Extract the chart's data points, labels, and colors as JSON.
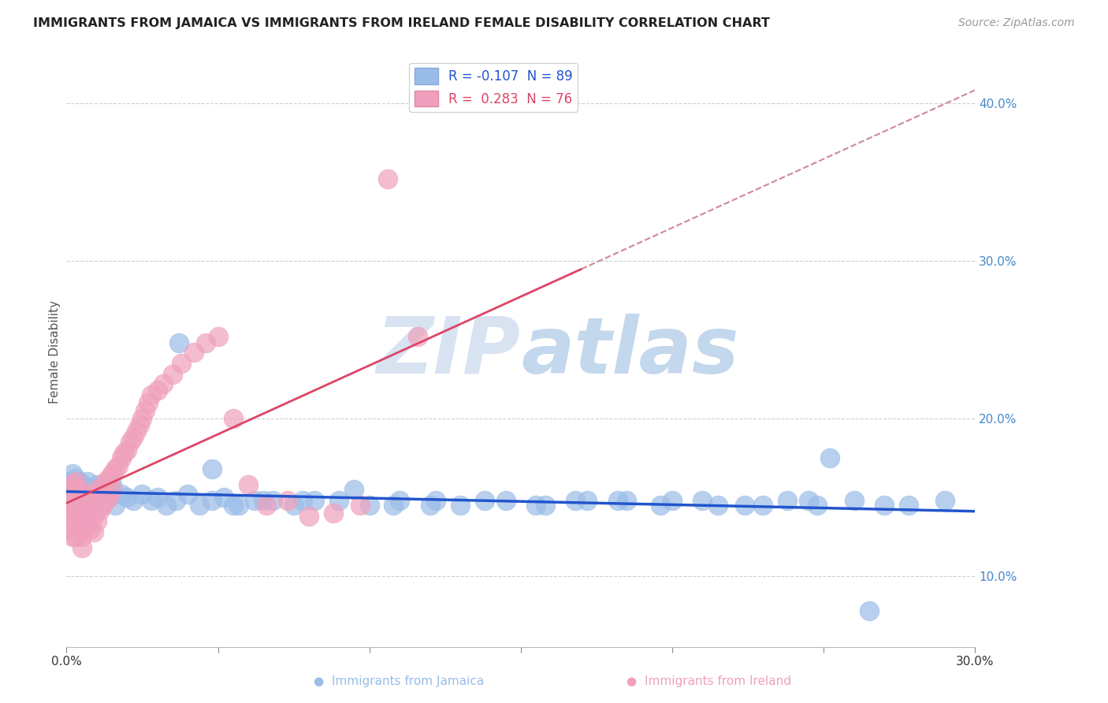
{
  "title": "IMMIGRANTS FROM JAMAICA VS IMMIGRANTS FROM IRELAND FEMALE DISABILITY CORRELATION CHART",
  "source": "Source: ZipAtlas.com",
  "ylabel": "Female Disability",
  "xlim": [
    0.0,
    0.3
  ],
  "ylim": [
    0.055,
    0.43
  ],
  "yticks": [
    0.1,
    0.2,
    0.3,
    0.4
  ],
  "xtick_positions": [
    0.0,
    0.05,
    0.1,
    0.15,
    0.2,
    0.25,
    0.3
  ],
  "xtick_labels": [
    "0.0%",
    "",
    "",
    "",
    "",
    "",
    "30.0%"
  ],
  "jamaica_color": "#9abde8",
  "ireland_color": "#f0a0bc",
  "jamaica_R": -0.107,
  "jamaica_N": 89,
  "ireland_R": 0.283,
  "ireland_N": 76,
  "trend_blue_color": "#2255cc",
  "trend_pink_color": "#dd4466",
  "trend_pink_dash_color": "#cc8899",
  "watermark_color": "#c8d8f0",
  "background_color": "#ffffff",
  "grid_color": "#c8d0de",
  "ytick_color": "#4488cc",
  "jamaica_x": [
    0.001,
    0.001,
    0.001,
    0.002,
    0.002,
    0.002,
    0.002,
    0.003,
    0.003,
    0.003,
    0.003,
    0.004,
    0.004,
    0.004,
    0.004,
    0.005,
    0.005,
    0.005,
    0.006,
    0.006,
    0.006,
    0.007,
    0.007,
    0.007,
    0.008,
    0.008,
    0.009,
    0.009,
    0.01,
    0.01,
    0.011,
    0.012,
    0.013,
    0.014,
    0.015,
    0.016,
    0.018,
    0.02,
    0.022,
    0.025,
    0.028,
    0.03,
    0.033,
    0.036,
    0.04,
    0.044,
    0.048,
    0.052,
    0.057,
    0.062,
    0.068,
    0.075,
    0.082,
    0.09,
    0.1,
    0.11,
    0.12,
    0.13,
    0.145,
    0.158,
    0.172,
    0.185,
    0.2,
    0.215,
    0.23,
    0.245,
    0.26,
    0.27,
    0.037,
    0.048,
    0.055,
    0.065,
    0.078,
    0.095,
    0.108,
    0.122,
    0.138,
    0.155,
    0.168,
    0.182,
    0.196,
    0.21,
    0.224,
    0.238,
    0.252,
    0.265,
    0.278,
    0.29,
    0.248
  ],
  "jamaica_y": [
    0.155,
    0.16,
    0.148,
    0.152,
    0.158,
    0.143,
    0.165,
    0.15,
    0.157,
    0.145,
    0.162,
    0.148,
    0.155,
    0.143,
    0.16,
    0.152,
    0.147,
    0.158,
    0.15,
    0.155,
    0.145,
    0.148,
    0.16,
    0.153,
    0.152,
    0.145,
    0.155,
    0.148,
    0.15,
    0.158,
    0.145,
    0.155,
    0.148,
    0.152,
    0.158,
    0.145,
    0.152,
    0.15,
    0.148,
    0.152,
    0.148,
    0.15,
    0.145,
    0.148,
    0.152,
    0.145,
    0.148,
    0.15,
    0.145,
    0.148,
    0.148,
    0.145,
    0.148,
    0.148,
    0.145,
    0.148,
    0.145,
    0.145,
    0.148,
    0.145,
    0.148,
    0.148,
    0.148,
    0.145,
    0.145,
    0.148,
    0.148,
    0.145,
    0.248,
    0.168,
    0.145,
    0.148,
    0.148,
    0.155,
    0.145,
    0.148,
    0.148,
    0.145,
    0.148,
    0.148,
    0.145,
    0.148,
    0.145,
    0.148,
    0.175,
    0.078,
    0.145,
    0.148,
    0.145
  ],
  "ireland_x": [
    0.001,
    0.001,
    0.001,
    0.001,
    0.002,
    0.002,
    0.002,
    0.002,
    0.003,
    0.003,
    0.003,
    0.003,
    0.003,
    0.004,
    0.004,
    0.004,
    0.004,
    0.005,
    0.005,
    0.005,
    0.005,
    0.005,
    0.006,
    0.006,
    0.006,
    0.007,
    0.007,
    0.007,
    0.008,
    0.008,
    0.008,
    0.009,
    0.009,
    0.009,
    0.01,
    0.01,
    0.01,
    0.011,
    0.011,
    0.012,
    0.012,
    0.013,
    0.013,
    0.014,
    0.014,
    0.015,
    0.015,
    0.016,
    0.017,
    0.018,
    0.019,
    0.02,
    0.021,
    0.022,
    0.023,
    0.024,
    0.025,
    0.026,
    0.027,
    0.028,
    0.03,
    0.032,
    0.035,
    0.038,
    0.042,
    0.046,
    0.05,
    0.055,
    0.06,
    0.066,
    0.073,
    0.08,
    0.088,
    0.097,
    0.106,
    0.116
  ],
  "ireland_y": [
    0.155,
    0.148,
    0.14,
    0.13,
    0.158,
    0.145,
    0.135,
    0.125,
    0.16,
    0.152,
    0.143,
    0.135,
    0.125,
    0.155,
    0.148,
    0.138,
    0.128,
    0.152,
    0.143,
    0.135,
    0.125,
    0.118,
    0.148,
    0.14,
    0.13,
    0.152,
    0.143,
    0.133,
    0.15,
    0.14,
    0.13,
    0.148,
    0.138,
    0.128,
    0.155,
    0.145,
    0.135,
    0.152,
    0.142,
    0.155,
    0.145,
    0.16,
    0.148,
    0.162,
    0.15,
    0.165,
    0.155,
    0.168,
    0.17,
    0.175,
    0.178,
    0.18,
    0.185,
    0.188,
    0.192,
    0.196,
    0.2,
    0.205,
    0.21,
    0.215,
    0.218,
    0.222,
    0.228,
    0.235,
    0.242,
    0.248,
    0.252,
    0.2,
    0.158,
    0.145,
    0.148,
    0.138,
    0.14,
    0.145,
    0.352,
    0.252
  ]
}
